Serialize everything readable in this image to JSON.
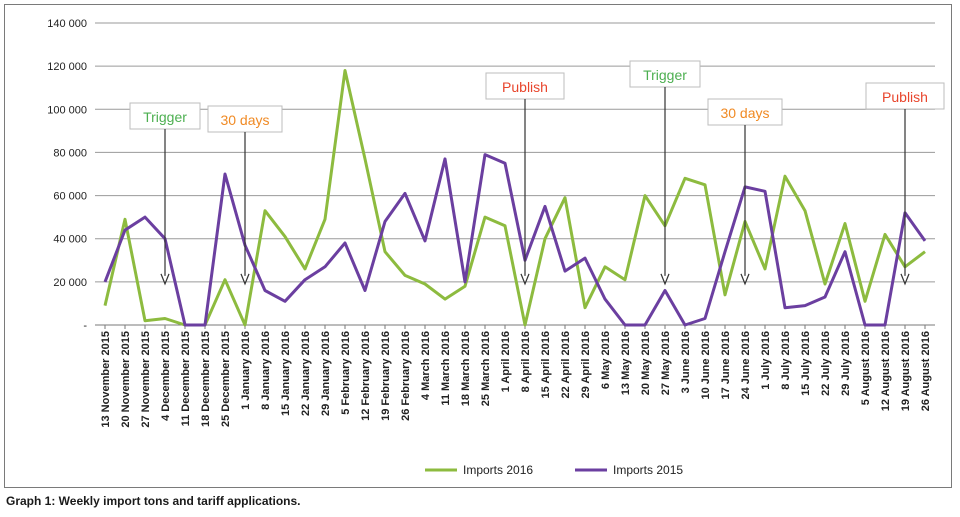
{
  "caption": "Graph 1: Weekly import tons and tariff applications.",
  "colors": {
    "imports_2016": "#8dbb3f",
    "imports_2015": "#6b3fa0",
    "trigger": "#4caf50",
    "thirty_days": "#f08a24",
    "publish": "#e8452c",
    "grid": "#9a9a9a"
  },
  "chart_data": {
    "type": "line",
    "title": "",
    "xlabel": "",
    "ylabel": "",
    "ylim": [
      0,
      140000
    ],
    "y_ticks": [
      "-",
      "20 000",
      "40 000",
      "60 000",
      "80 000",
      "100 000",
      "120 000",
      "140 000"
    ],
    "grid": "horizontal",
    "legend_position": "bottom",
    "categories": [
      "13 November 2015",
      "20 November 2015",
      "27 November 2015",
      "4 December 2015",
      "11 December 2015",
      "18 December 2015",
      "25 December 2015",
      "1 January 2016",
      "8 January 2016",
      "15 January 2016",
      "22 January 2016",
      "29 January 2016",
      "5 February 2016",
      "12 February 2016",
      "19 February 2016",
      "26 February 2016",
      "4 March 2016",
      "11 March 2016",
      "18 March 2016",
      "25 March 2016",
      "1 April 2016",
      "8 April 2016",
      "15 April 2016",
      "22 April 2016",
      "29 April 2016",
      "6 May 2016",
      "13 May 2016",
      "20 May 2016",
      "27 May 2016",
      "3 June 2016",
      "10 June 2016",
      "17 June 2016",
      "24 June 2016",
      "1 July 2016",
      "8 July 2016",
      "15 July 2016",
      "22 July 2016",
      "29 July 2016",
      "5 August 2016",
      "12 August 2016",
      "19 August 2016",
      "26 August 2016"
    ],
    "series": [
      {
        "name": "Imports 2016",
        "color": "#8dbb3f",
        "values": [
          9000,
          49000,
          2000,
          3000,
          0,
          0,
          21000,
          0,
          53000,
          41000,
          26000,
          49000,
          118000,
          77000,
          34000,
          23000,
          19000,
          12000,
          18000,
          50000,
          46000,
          0,
          40000,
          59000,
          8000,
          27000,
          21000,
          60000,
          46000,
          68000,
          65000,
          14000,
          48000,
          26000,
          69000,
          53000,
          19000,
          47000,
          11000,
          42000,
          27000,
          34000
        ]
      },
      {
        "name": "Imports 2015",
        "color": "#6b3fa0",
        "values": [
          20000,
          44000,
          50000,
          40000,
          0,
          0,
          70000,
          37000,
          16000,
          11000,
          21000,
          27000,
          38000,
          16000,
          48000,
          61000,
          39000,
          77000,
          20000,
          79000,
          75000,
          30000,
          55000,
          25000,
          31000,
          12000,
          0,
          0,
          16000,
          0,
          3000,
          34000,
          64000,
          62000,
          8000,
          9000,
          13000,
          34000,
          0,
          0,
          52000,
          39000
        ]
      }
    ],
    "annotations": [
      {
        "label": "Trigger",
        "kind": "trigger",
        "at": "4 December 2015",
        "y": 20000
      },
      {
        "label": "30 days",
        "kind": "thirty_days",
        "at": "1 January 2016",
        "y": 20000
      },
      {
        "label": "Publish",
        "kind": "publish",
        "at": "8 April 2016",
        "y": 20000
      },
      {
        "label": "Trigger",
        "kind": "trigger",
        "at": "27 May 2016",
        "y": 20000
      },
      {
        "label": "30 days",
        "kind": "thirty_days",
        "at": "24 June 2016",
        "y": 20000
      },
      {
        "label": "Publish",
        "kind": "publish",
        "at": "19 August 2016",
        "y": 20000
      }
    ]
  }
}
